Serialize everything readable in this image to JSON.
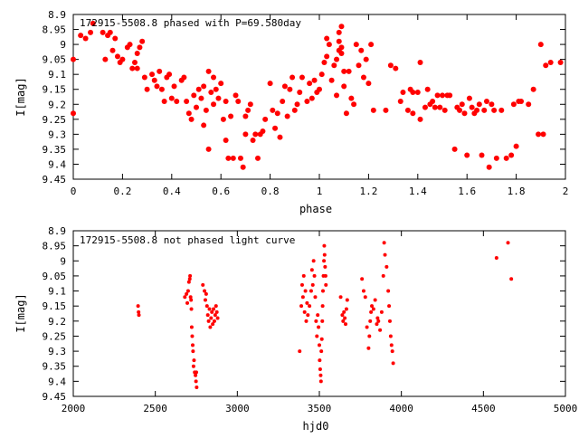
{
  "chart_data": [
    {
      "type": "scatter",
      "title": "172915-5508.8 phased with P=69.580day",
      "xlabel": "phase",
      "ylabel": "I[mag]",
      "xlim": [
        0,
        2
      ],
      "ylim": [
        9.45,
        8.9
      ],
      "y_inverted": true,
      "grid": false,
      "marker_color": "#ff0000",
      "marker": "filled-circle",
      "xticks": [
        0,
        0.2,
        0.4,
        0.6,
        0.8,
        1,
        1.2,
        1.4,
        1.6,
        1.8,
        2
      ],
      "xtick_labels": [
        "0",
        "0.2",
        "0.4",
        "0.6",
        "0.8",
        "1",
        "1.2",
        "1.4",
        "1.6",
        "1.8",
        "2"
      ],
      "yticks": [
        8.9,
        8.95,
        9,
        9.05,
        9.1,
        9.15,
        9.2,
        9.25,
        9.3,
        9.35,
        9.4,
        9.45
      ],
      "ytick_labels": [
        "8.9",
        "8.95",
        "9",
        "9.05",
        "9.1",
        "9.15",
        "9.2",
        "9.25",
        "9.3",
        "9.35",
        "9.4",
        "9.45"
      ],
      "points": [
        [
          0.0,
          9.05
        ],
        [
          0.0,
          9.23
        ],
        [
          0.03,
          8.97
        ],
        [
          0.05,
          8.98
        ],
        [
          0.07,
          8.96
        ],
        [
          0.08,
          8.93
        ],
        [
          0.12,
          8.96
        ],
        [
          0.13,
          9.05
        ],
        [
          0.14,
          8.97
        ],
        [
          0.15,
          8.96
        ],
        [
          0.16,
          9.02
        ],
        [
          0.17,
          8.98
        ],
        [
          0.18,
          9.04
        ],
        [
          0.19,
          9.06
        ],
        [
          0.2,
          9.05
        ],
        [
          0.22,
          9.01
        ],
        [
          0.23,
          9.0
        ],
        [
          0.24,
          9.08
        ],
        [
          0.25,
          9.06
        ],
        [
          0.26,
          9.08
        ],
        [
          0.26,
          9.03
        ],
        [
          0.27,
          9.01
        ],
        [
          0.28,
          8.99
        ],
        [
          0.29,
          9.11
        ],
        [
          0.3,
          9.15
        ],
        [
          0.32,
          9.1
        ],
        [
          0.33,
          9.12
        ],
        [
          0.34,
          9.14
        ],
        [
          0.35,
          9.09
        ],
        [
          0.36,
          9.15
        ],
        [
          0.37,
          9.19
        ],
        [
          0.38,
          9.11
        ],
        [
          0.39,
          9.1
        ],
        [
          0.4,
          9.18
        ],
        [
          0.41,
          9.14
        ],
        [
          0.42,
          9.19
        ],
        [
          0.44,
          9.12
        ],
        [
          0.45,
          9.11
        ],
        [
          0.46,
          9.19
        ],
        [
          0.47,
          9.23
        ],
        [
          0.48,
          9.25
        ],
        [
          0.49,
          9.17
        ],
        [
          0.5,
          9.21
        ],
        [
          0.51,
          9.15
        ],
        [
          0.52,
          9.18
        ],
        [
          0.53,
          9.27
        ],
        [
          0.53,
          9.14
        ],
        [
          0.54,
          9.22
        ],
        [
          0.55,
          9.09
        ],
        [
          0.55,
          9.35
        ],
        [
          0.56,
          9.16
        ],
        [
          0.57,
          9.11
        ],
        [
          0.57,
          9.2
        ],
        [
          0.58,
          9.15
        ],
        [
          0.59,
          9.18
        ],
        [
          0.6,
          9.13
        ],
        [
          0.61,
          9.25
        ],
        [
          0.62,
          9.19
        ],
        [
          0.62,
          9.32
        ],
        [
          0.63,
          9.38
        ],
        [
          0.64,
          9.24
        ],
        [
          0.65,
          9.38
        ],
        [
          0.66,
          9.17
        ],
        [
          0.67,
          9.19
        ],
        [
          0.68,
          9.38
        ],
        [
          0.69,
          9.41
        ],
        [
          0.7,
          9.24
        ],
        [
          0.7,
          9.3
        ],
        [
          0.71,
          9.22
        ],
        [
          0.72,
          9.2
        ],
        [
          0.73,
          9.32
        ],
        [
          0.74,
          9.3
        ],
        [
          0.75,
          9.38
        ],
        [
          0.76,
          9.3
        ],
        [
          0.77,
          9.29
        ],
        [
          0.78,
          9.25
        ],
        [
          0.8,
          9.13
        ],
        [
          0.81,
          9.22
        ],
        [
          0.82,
          9.28
        ],
        [
          0.83,
          9.23
        ],
        [
          0.84,
          9.31
        ],
        [
          0.85,
          9.19
        ],
        [
          0.86,
          9.14
        ],
        [
          0.87,
          9.24
        ],
        [
          0.88,
          9.15
        ],
        [
          0.89,
          9.11
        ],
        [
          0.9,
          9.22
        ],
        [
          0.91,
          9.2
        ],
        [
          0.92,
          9.16
        ],
        [
          0.93,
          9.11
        ],
        [
          0.95,
          9.19
        ],
        [
          0.96,
          9.13
        ],
        [
          0.97,
          9.18
        ],
        [
          0.98,
          9.12
        ],
        [
          0.99,
          9.16
        ],
        [
          1.0,
          9.15
        ],
        [
          1.01,
          9.1
        ],
        [
          1.02,
          9.06
        ],
        [
          1.03,
          9.04
        ],
        [
          1.03,
          8.98
        ],
        [
          1.04,
          9.0
        ],
        [
          1.05,
          9.12
        ],
        [
          1.06,
          9.07
        ],
        [
          1.07,
          9.17
        ],
        [
          1.07,
          9.05
        ],
        [
          1.08,
          8.96
        ],
        [
          1.08,
          8.99
        ],
        [
          1.08,
          9.02
        ],
        [
          1.09,
          8.94
        ],
        [
          1.09,
          9.01
        ],
        [
          1.09,
          9.03
        ],
        [
          1.1,
          9.09
        ],
        [
          1.1,
          9.14
        ],
        [
          1.11,
          9.23
        ],
        [
          1.12,
          9.09
        ],
        [
          1.13,
          9.18
        ],
        [
          1.14,
          9.2
        ],
        [
          1.15,
          9.0
        ],
        [
          1.16,
          9.07
        ],
        [
          1.17,
          9.02
        ],
        [
          1.18,
          9.11
        ],
        [
          1.19,
          9.05
        ],
        [
          1.2,
          9.13
        ],
        [
          1.21,
          9.0
        ],
        [
          1.22,
          9.22
        ],
        [
          1.27,
          9.22
        ],
        [
          1.29,
          9.07
        ],
        [
          1.31,
          9.08
        ],
        [
          1.33,
          9.19
        ],
        [
          1.34,
          9.16
        ],
        [
          1.36,
          9.22
        ],
        [
          1.37,
          9.15
        ],
        [
          1.38,
          9.16
        ],
        [
          1.38,
          9.23
        ],
        [
          1.4,
          9.16
        ],
        [
          1.41,
          9.25
        ],
        [
          1.41,
          9.06
        ],
        [
          1.43,
          9.21
        ],
        [
          1.44,
          9.15
        ],
        [
          1.45,
          9.2
        ],
        [
          1.46,
          9.19
        ],
        [
          1.47,
          9.21
        ],
        [
          1.48,
          9.17
        ],
        [
          1.49,
          9.21
        ],
        [
          1.5,
          9.17
        ],
        [
          1.51,
          9.22
        ],
        [
          1.52,
          9.17
        ],
        [
          1.53,
          9.17
        ],
        [
          1.55,
          9.35
        ],
        [
          1.56,
          9.21
        ],
        [
          1.57,
          9.22
        ],
        [
          1.58,
          9.2
        ],
        [
          1.59,
          9.23
        ],
        [
          1.6,
          9.37
        ],
        [
          1.61,
          9.18
        ],
        [
          1.62,
          9.21
        ],
        [
          1.63,
          9.23
        ],
        [
          1.64,
          9.22
        ],
        [
          1.65,
          9.2
        ],
        [
          1.66,
          9.37
        ],
        [
          1.67,
          9.22
        ],
        [
          1.68,
          9.19
        ],
        [
          1.69,
          9.41
        ],
        [
          1.7,
          9.2
        ],
        [
          1.71,
          9.22
        ],
        [
          1.72,
          9.38
        ],
        [
          1.74,
          9.22
        ],
        [
          1.76,
          9.38
        ],
        [
          1.78,
          9.37
        ],
        [
          1.79,
          9.2
        ],
        [
          1.8,
          9.34
        ],
        [
          1.81,
          9.19
        ],
        [
          1.82,
          9.19
        ],
        [
          1.85,
          9.2
        ],
        [
          1.87,
          9.15
        ],
        [
          1.89,
          9.3
        ],
        [
          1.9,
          9.0
        ],
        [
          1.91,
          9.3
        ],
        [
          1.92,
          9.07
        ],
        [
          1.94,
          9.06
        ],
        [
          1.98,
          9.06
        ]
      ]
    },
    {
      "type": "scatter",
      "title": "172915-5508.8 not phased light curve",
      "xlabel": "hjd0",
      "ylabel": "I[mag]",
      "xlim": [
        2000,
        5000
      ],
      "ylim": [
        9.45,
        8.9
      ],
      "y_inverted": true,
      "grid": false,
      "marker_color": "#ff0000",
      "marker": "filled-circle",
      "xticks": [
        2000,
        2500,
        3000,
        3500,
        4000,
        4500,
        5000
      ],
      "xtick_labels": [
        "2000",
        "2500",
        "3000",
        "3500",
        "4000",
        "4500",
        "5000"
      ],
      "yticks": [
        8.9,
        8.95,
        9,
        9.05,
        9.1,
        9.15,
        9.2,
        9.25,
        9.3,
        9.35,
        9.4,
        9.45
      ],
      "ytick_labels": [
        "8.9",
        "8.95",
        "9",
        "9.05",
        "9.1",
        "9.15",
        "9.2",
        "9.25",
        "9.3",
        "9.35",
        "9.4",
        "9.45"
      ],
      "points": [
        [
          2395,
          9.15
        ],
        [
          2398,
          9.17
        ],
        [
          2400,
          9.18
        ],
        [
          2680,
          9.12
        ],
        [
          2690,
          9.11
        ],
        [
          2695,
          9.14
        ],
        [
          2700,
          9.1
        ],
        [
          2705,
          9.07
        ],
        [
          2710,
          9.06
        ],
        [
          2712,
          9.05
        ],
        [
          2715,
          9.12
        ],
        [
          2718,
          9.13
        ],
        [
          2720,
          9.16
        ],
        [
          2722,
          9.22
        ],
        [
          2725,
          9.25
        ],
        [
          2728,
          9.28
        ],
        [
          2730,
          9.3
        ],
        [
          2733,
          9.35
        ],
        [
          2736,
          9.33
        ],
        [
          2740,
          9.37
        ],
        [
          2745,
          9.38
        ],
        [
          2748,
          9.4
        ],
        [
          2750,
          9.37
        ],
        [
          2752,
          9.42
        ],
        [
          2790,
          9.08
        ],
        [
          2800,
          9.1
        ],
        [
          2805,
          9.13
        ],
        [
          2810,
          9.11
        ],
        [
          2815,
          9.15
        ],
        [
          2820,
          9.18
        ],
        [
          2825,
          9.2
        ],
        [
          2830,
          9.16
        ],
        [
          2835,
          9.22
        ],
        [
          2840,
          9.19
        ],
        [
          2845,
          9.17
        ],
        [
          2850,
          9.21
        ],
        [
          2855,
          9.16
        ],
        [
          2860,
          9.2
        ],
        [
          2865,
          9.18
        ],
        [
          2870,
          9.15
        ],
        [
          2875,
          9.17
        ],
        [
          2880,
          9.19
        ],
        [
          3380,
          9.3
        ],
        [
          3390,
          9.15
        ],
        [
          3395,
          9.08
        ],
        [
          3400,
          9.12
        ],
        [
          3405,
          9.05
        ],
        [
          3410,
          9.17
        ],
        [
          3415,
          9.1
        ],
        [
          3420,
          9.2
        ],
        [
          3425,
          9.14
        ],
        [
          3430,
          9.18
        ],
        [
          3440,
          9.15
        ],
        [
          3450,
          9.1
        ],
        [
          3455,
          9.03
        ],
        [
          3460,
          9.08
        ],
        [
          3465,
          9.0
        ],
        [
          3470,
          9.05
        ],
        [
          3475,
          9.12
        ],
        [
          3480,
          9.2
        ],
        [
          3485,
          9.25
        ],
        [
          3490,
          9.18
        ],
        [
          3495,
          9.22
        ],
        [
          3500,
          9.28
        ],
        [
          3502,
          9.33
        ],
        [
          3505,
          9.36
        ],
        [
          3508,
          9.38
        ],
        [
          3510,
          9.4
        ],
        [
          3512,
          9.3
        ],
        [
          3515,
          9.26
        ],
        [
          3518,
          9.2
        ],
        [
          3520,
          9.15
        ],
        [
          3522,
          9.1
        ],
        [
          3525,
          9.05
        ],
        [
          3528,
          9.0
        ],
        [
          3530,
          8.95
        ],
        [
          3532,
          8.98
        ],
        [
          3535,
          9.02
        ],
        [
          3538,
          9.05
        ],
        [
          3540,
          9.08
        ],
        [
          3630,
          9.12
        ],
        [
          3640,
          9.18
        ],
        [
          3645,
          9.2
        ],
        [
          3650,
          9.17
        ],
        [
          3655,
          9.19
        ],
        [
          3660,
          9.21
        ],
        [
          3665,
          9.16
        ],
        [
          3670,
          9.13
        ],
        [
          3760,
          9.06
        ],
        [
          3770,
          9.1
        ],
        [
          3780,
          9.12
        ],
        [
          3790,
          9.22
        ],
        [
          3800,
          9.29
        ],
        [
          3805,
          9.25
        ],
        [
          3810,
          9.2
        ],
        [
          3815,
          9.17
        ],
        [
          3820,
          9.15
        ],
        [
          3830,
          9.16
        ],
        [
          3840,
          9.13
        ],
        [
          3850,
          9.21
        ],
        [
          3855,
          9.19
        ],
        [
          3860,
          9.2
        ],
        [
          3870,
          9.23
        ],
        [
          3880,
          9.17
        ],
        [
          3890,
          9.05
        ],
        [
          3895,
          8.94
        ],
        [
          3900,
          8.98
        ],
        [
          3910,
          9.02
        ],
        [
          3920,
          9.1
        ],
        [
          3925,
          9.15
        ],
        [
          3930,
          9.2
        ],
        [
          3935,
          9.25
        ],
        [
          3940,
          9.28
        ],
        [
          3945,
          9.3
        ],
        [
          3950,
          9.34
        ],
        [
          4580,
          8.99
        ],
        [
          4650,
          8.94
        ],
        [
          4670,
          9.06
        ]
      ]
    }
  ]
}
